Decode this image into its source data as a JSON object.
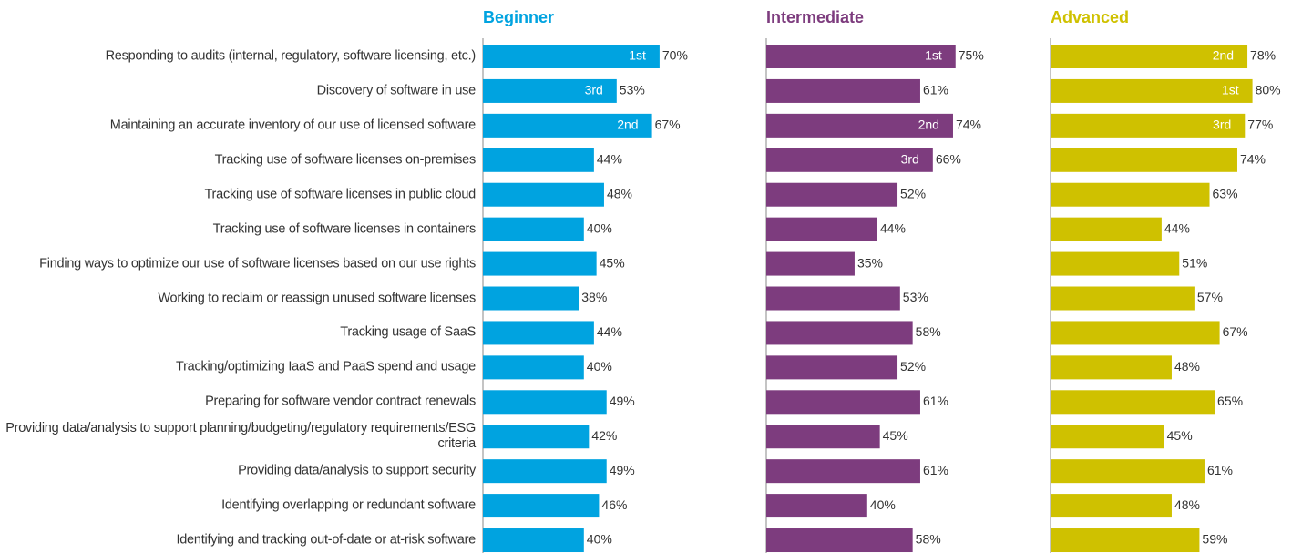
{
  "chart_data": {
    "type": "bar",
    "categories": [
      "Responding to audits (internal, regulatory, software licensing, etc.)",
      "Discovery of software in use",
      "Maintaining an accurate inventory of our use of licensed software",
      "Tracking use of software licenses on-premises",
      "Tracking use of software licenses in public cloud",
      "Tracking use of software licenses in containers",
      "Finding ways to optimize our use of software licenses based on our use rights",
      "Working to reclaim or reassign unused software licenses",
      "Tracking usage of SaaS",
      "Tracking/optimizing IaaS and PaaS spend and usage",
      "Preparing for software vendor contract renewals",
      "Providing data/analysis to support planning/budgeting/regulatory requirements/ESG criteria",
      "Providing data/analysis to support security",
      "Identifying overlapping or redundant software",
      "Identifying and tracking out-of-date or at-risk software"
    ],
    "series": [
      {
        "name": "Beginner",
        "color": "#00a3e0",
        "values": [
          70,
          53,
          67,
          44,
          48,
          40,
          45,
          38,
          44,
          40,
          49,
          42,
          49,
          46,
          40
        ],
        "value_labels": [
          "70%",
          "53%",
          "67%",
          "44%",
          "48%",
          "40%",
          "45%",
          "38%",
          "44%",
          "40%",
          "49%",
          "42%",
          "49%",
          "46%",
          "40%"
        ],
        "rank_labels": [
          "1st",
          "3rd",
          "2nd",
          null,
          null,
          null,
          null,
          null,
          null,
          null,
          null,
          null,
          null,
          null,
          null
        ]
      },
      {
        "name": "Intermediate",
        "color": "#7d3c7e",
        "values": [
          75,
          61,
          74,
          66,
          52,
          44,
          35,
          53,
          58,
          52,
          61,
          45,
          61,
          40,
          58
        ],
        "value_labels": [
          "75%",
          "61%",
          "74%",
          "66%",
          "52%",
          "44%",
          "35%",
          "53%",
          "58%",
          "52%",
          "61%",
          "45%",
          "61%",
          "40%",
          "58%"
        ],
        "rank_labels": [
          "1st",
          null,
          "2nd",
          "3rd",
          null,
          null,
          null,
          null,
          null,
          null,
          null,
          null,
          null,
          null,
          null
        ]
      },
      {
        "name": "Advanced",
        "color": "#cfc100",
        "values": [
          78,
          80,
          77,
          74,
          63,
          44,
          51,
          57,
          67,
          48,
          65,
          45,
          61,
          48,
          59
        ],
        "value_labels": [
          "78%",
          "80%",
          "77%",
          "74%",
          "63%",
          "44%",
          "51%",
          "57%",
          "67%",
          "48%",
          "65%",
          "45%",
          "61%",
          "48%",
          "59%"
        ],
        "rank_labels": [
          "2nd",
          "1st",
          "3rd",
          null,
          null,
          null,
          null,
          null,
          null,
          null,
          null,
          null,
          null,
          null,
          null
        ]
      }
    ]
  }
}
